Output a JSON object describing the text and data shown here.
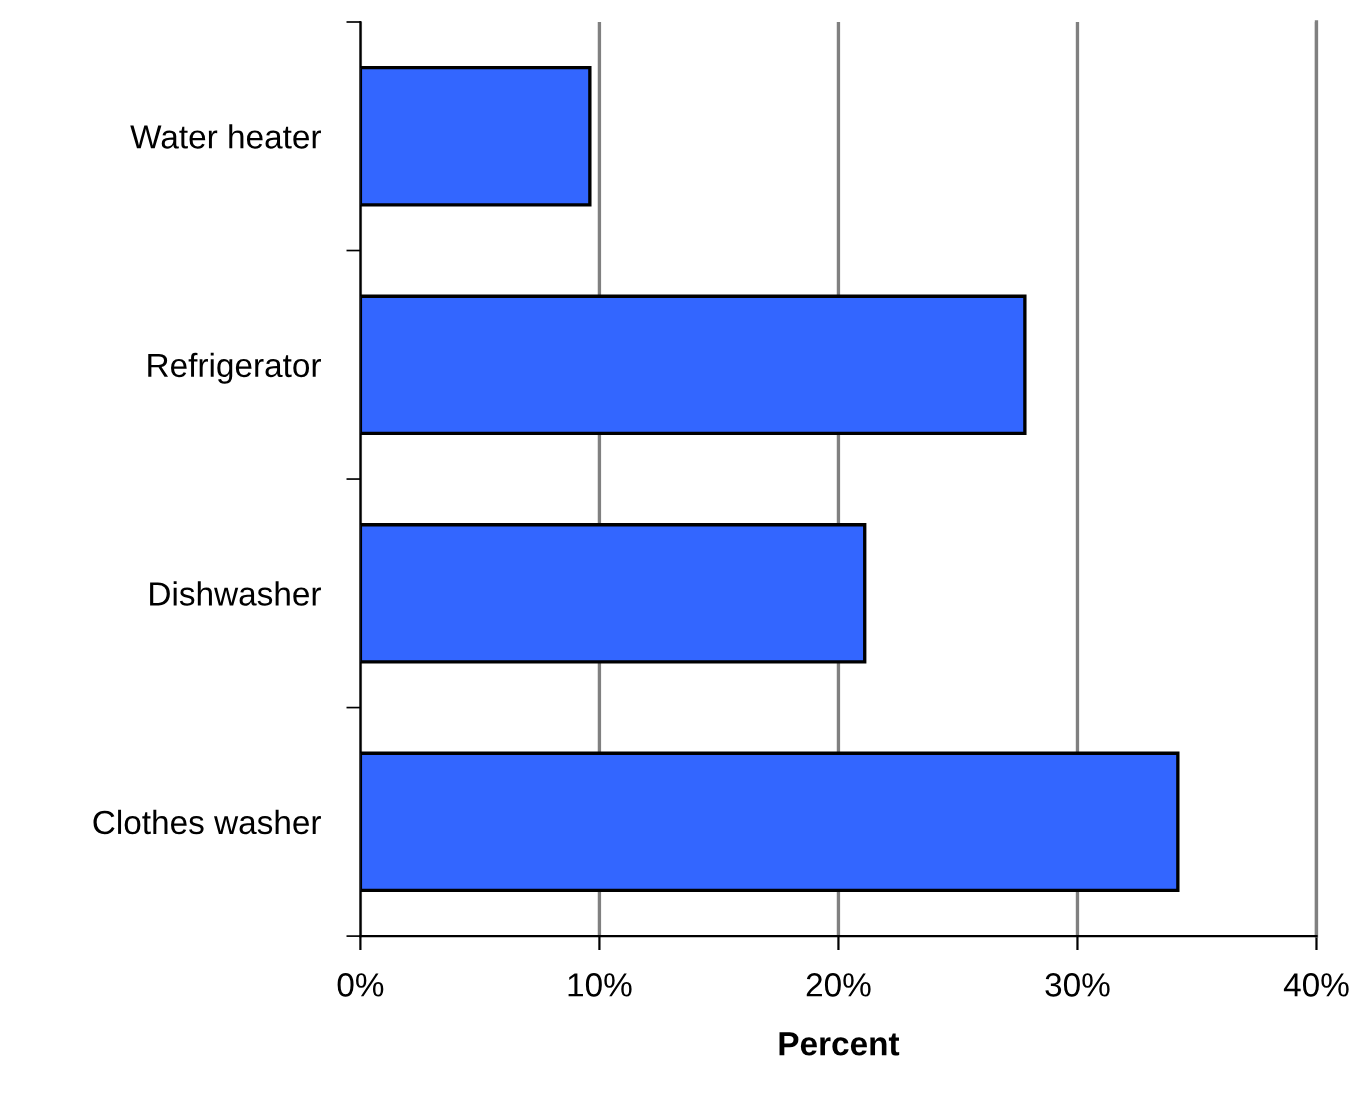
{
  "chart_data": {
    "type": "bar",
    "orientation": "horizontal",
    "xlabel": "Percent",
    "categories": [
      "Water heater",
      "Refrigerator",
      "Dishwasher",
      "Clothes washer"
    ],
    "values": [
      9.6,
      27.8,
      21.1,
      34.2
    ],
    "color": "#3366ff",
    "xlim": [
      0,
      40
    ],
    "xticks": [
      {
        "value": 0,
        "label": "0%"
      },
      {
        "value": 10,
        "label": "10%"
      },
      {
        "value": 20,
        "label": "20%"
      },
      {
        "value": 30,
        "label": "30%"
      },
      {
        "value": 40,
        "label": "40%"
      }
    ],
    "grid": "x"
  }
}
